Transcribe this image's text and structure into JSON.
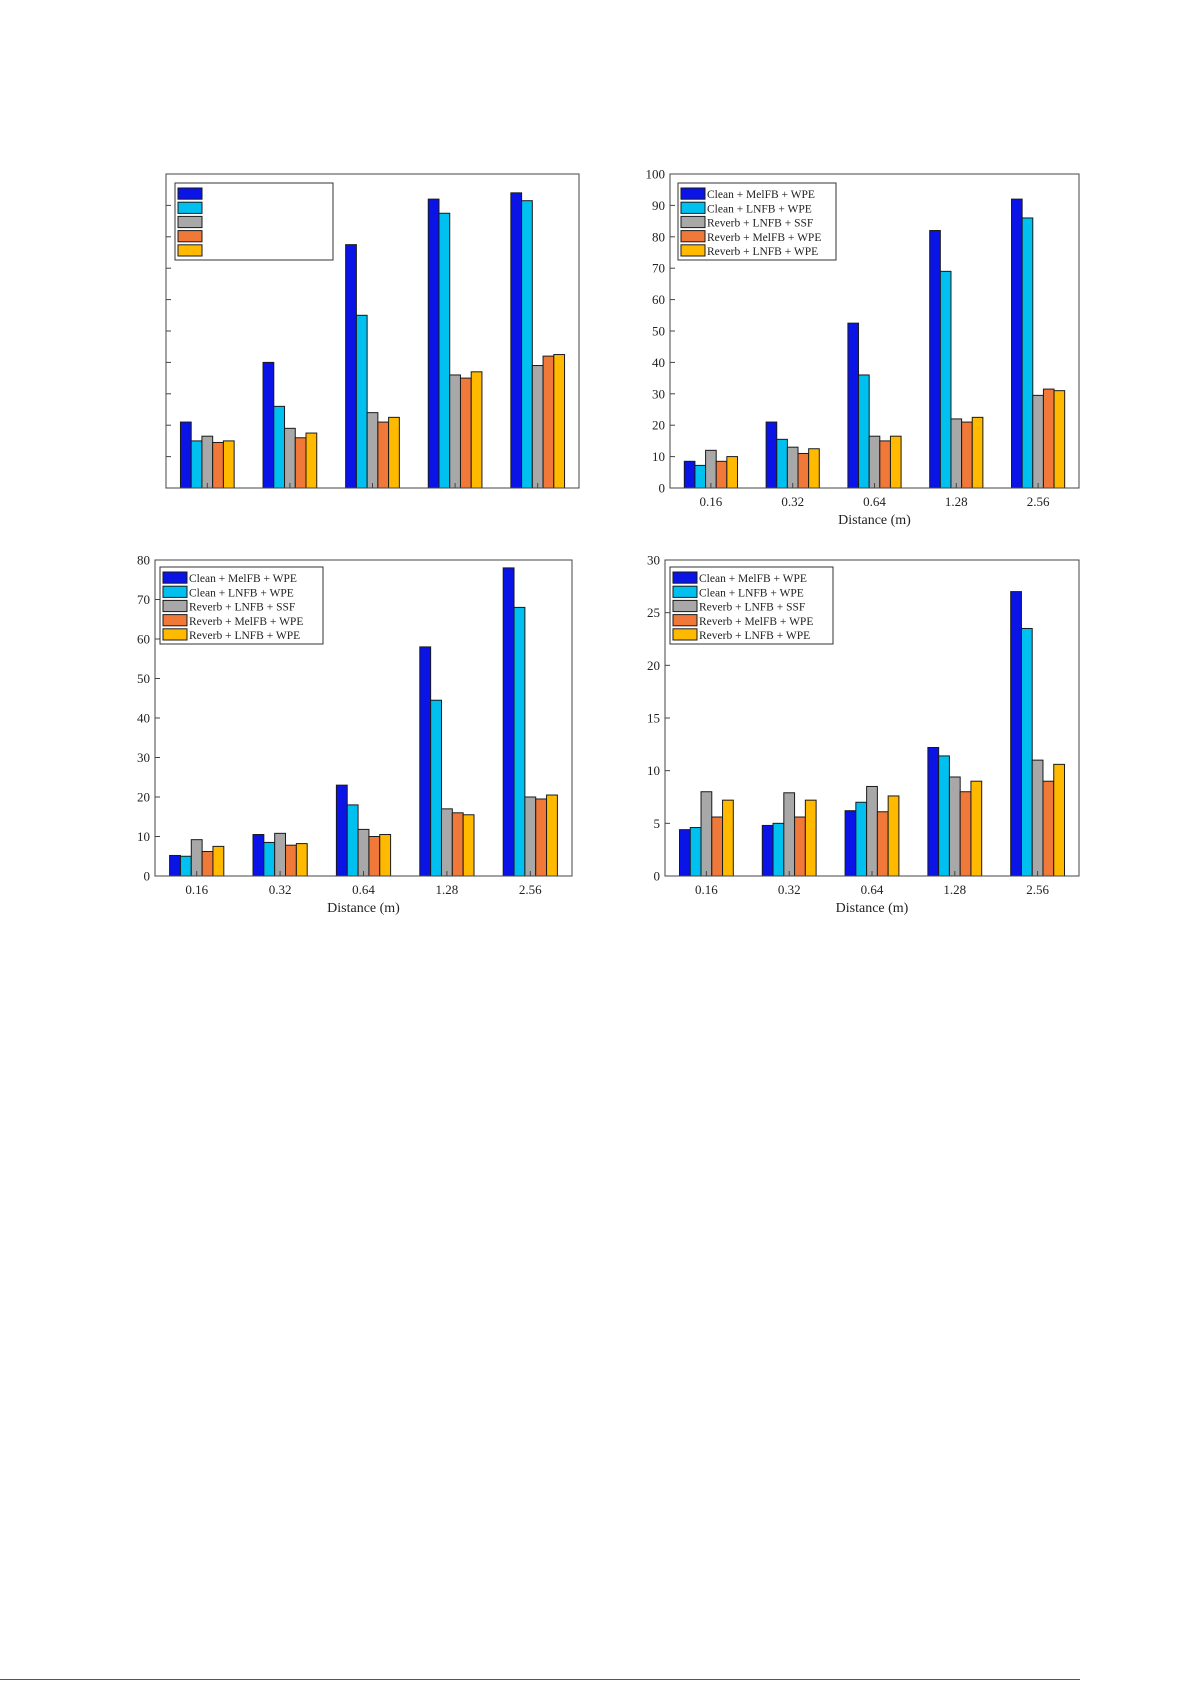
{
  "chart_data": [
    {
      "type": "bar",
      "categories": [
        "",
        "",
        "",
        "",
        ""
      ],
      "xlabel": "",
      "ylabel": "",
      "ylim": [
        0,
        100
      ],
      "yticks": [],
      "legend_placement": "top-left",
      "grid": false,
      "series": [
        {
          "name": "",
          "color": "#0a14e6",
          "values": [
            21,
            40,
            77.5,
            92,
            94
          ]
        },
        {
          "name": "",
          "color": "#00c0f0",
          "values": [
            15,
            26,
            55,
            87.5,
            91.5
          ]
        },
        {
          "name": "",
          "color": "#a8a8a8",
          "values": [
            16.5,
            19,
            24,
            36,
            39
          ]
        },
        {
          "name": "",
          "color": "#f07838",
          "values": [
            14.5,
            16,
            21,
            35,
            42
          ]
        },
        {
          "name": "",
          "color": "#ffba00",
          "values": [
            15,
            17.5,
            22.5,
            37,
            42.5
          ]
        }
      ]
    },
    {
      "type": "bar",
      "categories": [
        "0.16",
        "0.32",
        "0.64",
        "1.28",
        "2.56"
      ],
      "xlabel": "Distance (m)",
      "ylabel": "",
      "ylim": [
        0,
        100
      ],
      "yticks": [
        "0",
        "10",
        "20",
        "30",
        "40",
        "50",
        "60",
        "70",
        "80",
        "90",
        "100"
      ],
      "legend_placement": "top-left",
      "grid": false,
      "series": [
        {
          "name": "Clean + MelFB + WPE",
          "color": "#0a14e6",
          "values": [
            8.5,
            21,
            52.5,
            82,
            92
          ]
        },
        {
          "name": "Clean + LNFB + WPE",
          "color": "#00c0f0",
          "values": [
            7.2,
            15.5,
            36,
            69,
            86
          ]
        },
        {
          "name": "Reverb + LNFB + SSF",
          "color": "#a8a8a8",
          "values": [
            12,
            13,
            16.5,
            22,
            29.5
          ]
        },
        {
          "name": "Reverb + MelFB + WPE",
          "color": "#f07838",
          "values": [
            8.5,
            11,
            15,
            21,
            31.5
          ]
        },
        {
          "name": "Reverb + LNFB + WPE",
          "color": "#ffba00",
          "values": [
            10,
            12.5,
            16.5,
            22.5,
            31
          ]
        }
      ]
    },
    {
      "type": "bar",
      "categories": [
        "0.16",
        "0.32",
        "0.64",
        "1.28",
        "2.56"
      ],
      "xlabel": "Distance (m)",
      "ylabel": "",
      "ylim": [
        0,
        80
      ],
      "yticks": [
        "0",
        "10",
        "20",
        "30",
        "40",
        "50",
        "60",
        "70",
        "80"
      ],
      "legend_placement": "top-left",
      "grid": false,
      "series": [
        {
          "name": "Clean + MelFB + WPE",
          "color": "#0a14e6",
          "values": [
            5.2,
            10.5,
            23,
            58,
            78
          ]
        },
        {
          "name": "Clean + LNFB + WPE",
          "color": "#00c0f0",
          "values": [
            5,
            8.5,
            18,
            44.5,
            68
          ]
        },
        {
          "name": "Reverb + LNFB + SSF",
          "color": "#a8a8a8",
          "values": [
            9.2,
            10.8,
            11.8,
            17,
            20
          ]
        },
        {
          "name": "Reverb + MelFB + WPE",
          "color": "#f07838",
          "values": [
            6.2,
            7.8,
            10,
            16,
            19.5
          ]
        },
        {
          "name": "Reverb + LNFB + WPE",
          "color": "#ffba00",
          "values": [
            7.5,
            8.2,
            10.5,
            15.5,
            20.5
          ]
        }
      ]
    },
    {
      "type": "bar",
      "categories": [
        "0.16",
        "0.32",
        "0.64",
        "1.28",
        "2.56"
      ],
      "xlabel": "Distance (m)",
      "ylabel": "",
      "ylim": [
        0,
        30
      ],
      "yticks": [
        "0",
        "5",
        "10",
        "15",
        "20",
        "25",
        "30"
      ],
      "legend_placement": "top-left",
      "grid": false,
      "series": [
        {
          "name": "Clean + MelFB + WPE",
          "color": "#0a14e6",
          "values": [
            4.4,
            4.8,
            6.2,
            12.2,
            27
          ]
        },
        {
          "name": "Clean + LNFB + WPE",
          "color": "#00c0f0",
          "values": [
            4.6,
            5,
            7,
            11.4,
            23.5
          ]
        },
        {
          "name": "Reverb + LNFB + SSF",
          "color": "#a8a8a8",
          "values": [
            8,
            7.9,
            8.5,
            9.4,
            11
          ]
        },
        {
          "name": "Reverb + MelFB + WPE",
          "color": "#f07838",
          "values": [
            5.6,
            5.6,
            6.1,
            8,
            9
          ]
        },
        {
          "name": "Reverb + LNFB + WPE",
          "color": "#ffba00",
          "values": [
            7.2,
            7.2,
            7.6,
            9,
            10.6
          ]
        }
      ]
    }
  ]
}
